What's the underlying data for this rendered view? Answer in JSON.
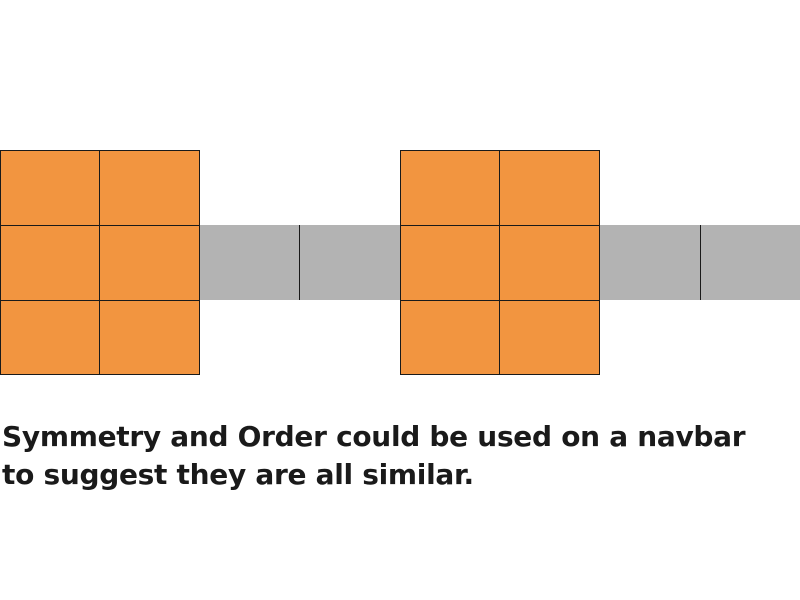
{
  "colors": {
    "grid_item": "#f29540",
    "nav_bar": "#b3b3b3",
    "outline": "#1a1a1a",
    "background": "#ffffff"
  },
  "caption": {
    "line1": "Symmetry and Order could be used on a navbar",
    "line2": "to suggest they are all similar."
  }
}
